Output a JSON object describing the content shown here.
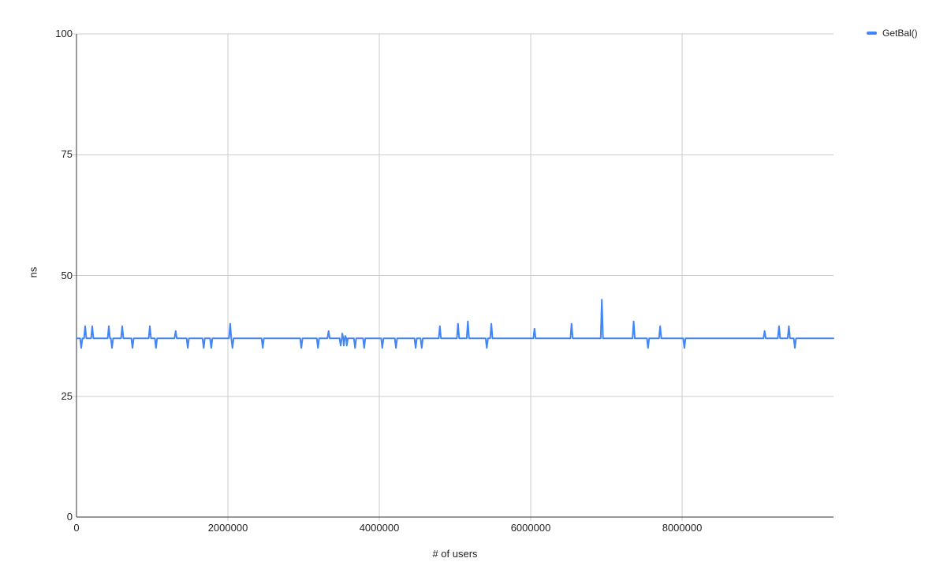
{
  "page": {
    "background": "#ffffff"
  },
  "chart_data": {
    "type": "line",
    "title": "",
    "xlabel": "# of users",
    "ylabel": "ns",
    "xlim": [
      0,
      10000000
    ],
    "ylim": [
      0,
      100
    ],
    "x_ticks": [
      0,
      2000000,
      4000000,
      6000000,
      8000000
    ],
    "x_tick_labels": [
      "0",
      "2000000",
      "4000000",
      "6000000",
      "8000000"
    ],
    "y_ticks": [
      0,
      25,
      50,
      75,
      100
    ],
    "y_tick_labels": [
      "0",
      "25",
      "50",
      "75",
      "100"
    ],
    "grid": true,
    "legend": {
      "position": "top-right",
      "items": [
        {
          "label": "GetBal()",
          "color": "#4285f4"
        }
      ]
    },
    "colors": {
      "gridline": "#cdcdcd",
      "axis": "#333333",
      "text": "#222222",
      "series": "#4285f4"
    },
    "series": [
      {
        "name": "GetBal()",
        "color": "#4285f4",
        "baseline_ns": 37,
        "spike_halfwidth_users": 15000,
        "spikes": [
          [
            63000,
            35
          ],
          [
            115000,
            39.5
          ],
          [
            208000,
            39.5
          ],
          [
            427000,
            39.5
          ],
          [
            469000,
            35
          ],
          [
            604000,
            39.5
          ],
          [
            740000,
            35
          ],
          [
            969000,
            39.5
          ],
          [
            1050000,
            35
          ],
          [
            1310000,
            38.5
          ],
          [
            1470000,
            35
          ],
          [
            1680000,
            35
          ],
          [
            1780000,
            35
          ],
          [
            2030000,
            40
          ],
          [
            2060000,
            35
          ],
          [
            2460000,
            35
          ],
          [
            2970000,
            35
          ],
          [
            3190000,
            35
          ],
          [
            3330000,
            38.5
          ],
          [
            3490000,
            35.5
          ],
          [
            3510000,
            38
          ],
          [
            3530000,
            35.5
          ],
          [
            3550000,
            37.5
          ],
          [
            3570000,
            35.5
          ],
          [
            3680000,
            35
          ],
          [
            3800000,
            35
          ],
          [
            4040000,
            35
          ],
          [
            4220000,
            35
          ],
          [
            4480000,
            35
          ],
          [
            4560000,
            35
          ],
          [
            4800000,
            39.5
          ],
          [
            5040000,
            40
          ],
          [
            5170000,
            40.5
          ],
          [
            5420000,
            35
          ],
          [
            5480000,
            40
          ],
          [
            6050000,
            39
          ],
          [
            6540000,
            40
          ],
          [
            6940000,
            45
          ],
          [
            7360000,
            40.5
          ],
          [
            7550000,
            35
          ],
          [
            7710000,
            39.5
          ],
          [
            8030000,
            35
          ],
          [
            9090000,
            38.5
          ],
          [
            9280000,
            39.5
          ],
          [
            9410000,
            39.5
          ],
          [
            9490000,
            35
          ]
        ]
      }
    ]
  }
}
